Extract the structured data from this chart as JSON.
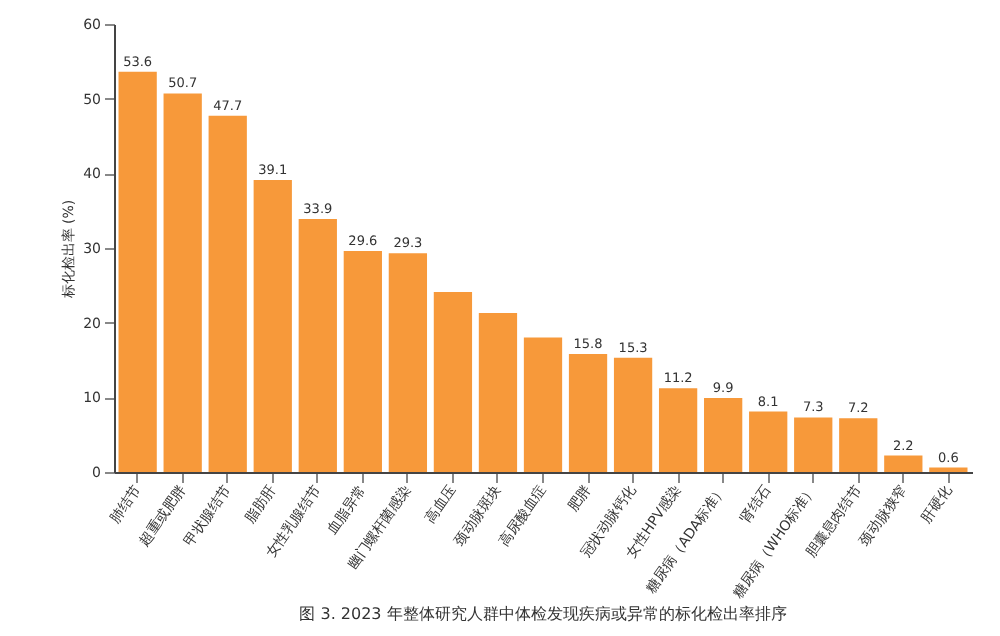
{
  "chart_data": {
    "type": "bar",
    "ylabel": "标化检出率 (%)",
    "categories": [
      "肺结节",
      "超重或肥胖",
      "甲状腺结节",
      "脂肪肝",
      "女性乳腺结节",
      "血脂异常",
      "幽门螺杆菌感染",
      "高血压",
      "颈动脉斑块",
      "高尿酸血症",
      "肥胖",
      "冠状动脉钙化",
      "女性HPV感染",
      "糖尿病（ADA标准）",
      "肾结石",
      "糖尿病（WHO标准）",
      "胆囊息肉结节",
      "颈动脉狭窄",
      "肝硬化"
    ],
    "values": [
      53.6,
      50.7,
      47.7,
      39.1,
      33.9,
      29.6,
      29.3,
      24.1,
      21.3,
      18.0,
      15.8,
      15.3,
      11.2,
      9.9,
      8.1,
      7.3,
      7.2,
      2.2,
      0.6
    ],
    "value_labels": [
      "53.6",
      "50.7",
      "47.7",
      "39.1",
      "33.9",
      "29.6",
      "29.3",
      null,
      null,
      null,
      "15.8",
      "15.3",
      "11.2",
      "9.9",
      "8.1",
      "7.3",
      "7.2",
      "2.2",
      "0.6"
    ],
    "color": "#f7993a",
    "ylim": [
      0,
      60
    ],
    "yticks": [
      0,
      10,
      20,
      30,
      40,
      50,
      60
    ],
    "grid": false,
    "annotations": [
      "图 3. 2023 年整体研究人群中体检发现疾病或异常的标化检出率排序"
    ]
  }
}
